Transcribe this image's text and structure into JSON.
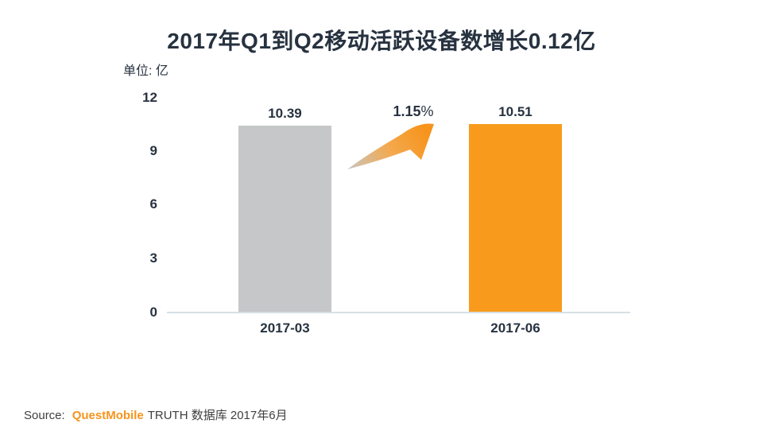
{
  "chart_data": {
    "type": "bar",
    "title": "2017年Q1到Q2移动活跃设备数增长0.12亿",
    "unit_label": "单位: 亿",
    "categories": [
      "2017-03",
      "2017-06"
    ],
    "values": [
      10.39,
      10.51
    ],
    "value_labels": [
      "10.39",
      "10.51"
    ],
    "series": [
      {
        "name": "移动活跃设备数",
        "values": [
          10.39,
          10.51
        ]
      }
    ],
    "growth": {
      "value": "1.15",
      "suffix": "%"
    },
    "yticks": [
      12,
      9,
      6,
      3,
      0
    ],
    "ylim": [
      0,
      12
    ],
    "grid": false,
    "bar_colors": [
      "#c6c7c8",
      "#f89b1c"
    ],
    "legend": null
  },
  "source": {
    "prefix": "Source:",
    "brand": "QuestMobile",
    "suffix": "TRUTH 数据库 2017年6月"
  },
  "colors": {
    "text_dark": "#273240",
    "bar_gray": "#c6c7c8",
    "bar_orange": "#f89b1c",
    "accent_orange": "#f7941d",
    "arrow_gray": "#c6c7c9",
    "axis_line": "#d7dfe5"
  }
}
